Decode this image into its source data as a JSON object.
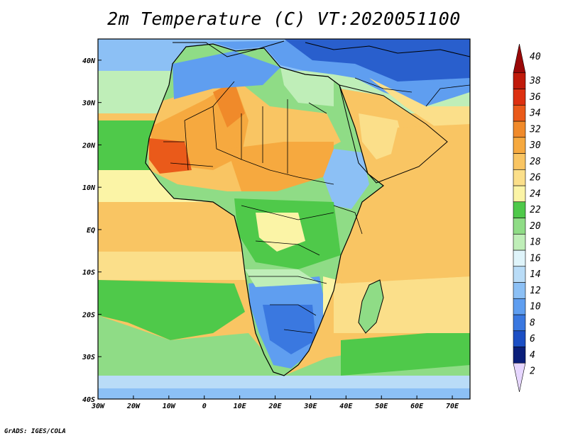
{
  "title": "2m Temperature (C) VT:2020051100",
  "credit": "GrADS: IGES/COLA",
  "map": {
    "lon_range": [
      -30,
      75
    ],
    "lat_range": [
      -40,
      45
    ],
    "x_ticks": [
      "30W",
      "20W",
      "10W",
      "0",
      "10E",
      "20E",
      "30E",
      "40E",
      "50E",
      "60E",
      "70E"
    ],
    "y_ticks": [
      "40N",
      "30N",
      "20N",
      "10N",
      "EQ",
      "10S",
      "20S",
      "30S",
      "40S"
    ]
  },
  "colorbar": {
    "levels": [
      "2",
      "4",
      "6",
      "8",
      "10",
      "12",
      "14",
      "16",
      "18",
      "20",
      "22",
      "24",
      "26",
      "28",
      "30",
      "32",
      "34",
      "36",
      "38",
      "40"
    ],
    "colors": [
      "#e6d6ff",
      "#0b1f7a",
      "#1c4fc4",
      "#3a78e0",
      "#5f9ef0",
      "#8cc0f5",
      "#b9dcf7",
      "#dff4fa",
      "#bfeeb8",
      "#8fdc86",
      "#4fc94a",
      "#fbf4a6",
      "#fbdf8a",
      "#f9c563",
      "#f6a93f",
      "#f08a2a",
      "#ea5a1a",
      "#dd3010",
      "#c01a0a",
      "#9a0808"
    ]
  }
}
